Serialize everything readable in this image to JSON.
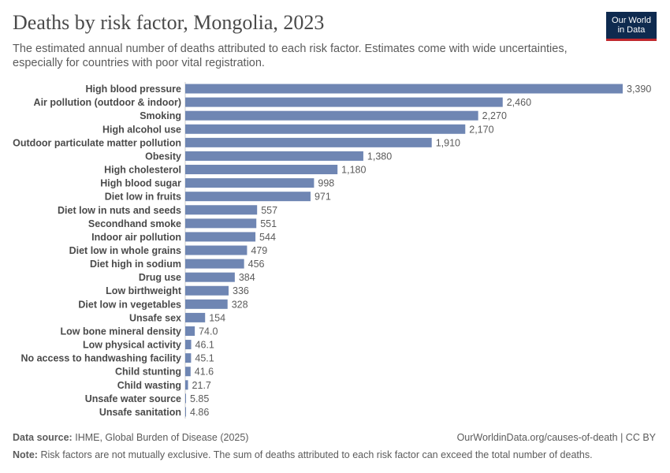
{
  "header": {
    "title": "Deaths by risk factor, Mongolia, 2023",
    "subtitle": "The estimated annual number of deaths attributed to each risk factor. Estimates come with wide uncertainties, especially for countries with poor vital registration.",
    "logo_line1": "Our World",
    "logo_line2": "in Data"
  },
  "footer": {
    "source_label": "Data source:",
    "source_text": "IHME, Global Burden of Disease (2025)",
    "link_text": "OurWorldinData.org/causes-of-death | CC BY",
    "note_label": "Note:",
    "note_text": "Risk factors are not mutually exclusive. The sum of deaths attributed to each risk factor can exceed the total number of deaths."
  },
  "colors": {
    "bar": "#6f86b3",
    "axis": "#cccccc"
  },
  "chart_data": {
    "type": "bar",
    "orientation": "horizontal",
    "title": "Deaths by risk factor, Mongolia, 2023",
    "xlabel": "",
    "ylabel": "",
    "xlim": [
      0,
      3390
    ],
    "categories": [
      "High blood pressure",
      "Air pollution (outdoor & indoor)",
      "Smoking",
      "High alcohol use",
      "Outdoor particulate matter pollution",
      "Obesity",
      "High cholesterol",
      "High blood sugar",
      "Diet low in fruits",
      "Diet low in nuts and seeds",
      "Secondhand smoke",
      "Indoor air pollution",
      "Diet low in whole grains",
      "Diet high in sodium",
      "Drug use",
      "Low birthweight",
      "Diet low in vegetables",
      "Unsafe sex",
      "Low bone mineral density",
      "Low physical activity",
      "No access to handwashing facility",
      "Child stunting",
      "Child wasting",
      "Unsafe water source",
      "Unsafe sanitation"
    ],
    "values": [
      3390,
      2460,
      2270,
      2170,
      1910,
      1380,
      1180,
      998,
      971,
      557,
      551,
      544,
      479,
      456,
      384,
      336,
      328,
      154,
      74.0,
      46.1,
      45.1,
      41.6,
      21.7,
      5.85,
      4.86
    ],
    "value_labels": [
      "3,390",
      "2,460",
      "2,270",
      "2,170",
      "1,910",
      "1,380",
      "1,180",
      "998",
      "971",
      "557",
      "551",
      "544",
      "479",
      "456",
      "384",
      "336",
      "328",
      "154",
      "74.0",
      "46.1",
      "45.1",
      "41.6",
      "21.7",
      "5.85",
      "4.86"
    ]
  }
}
